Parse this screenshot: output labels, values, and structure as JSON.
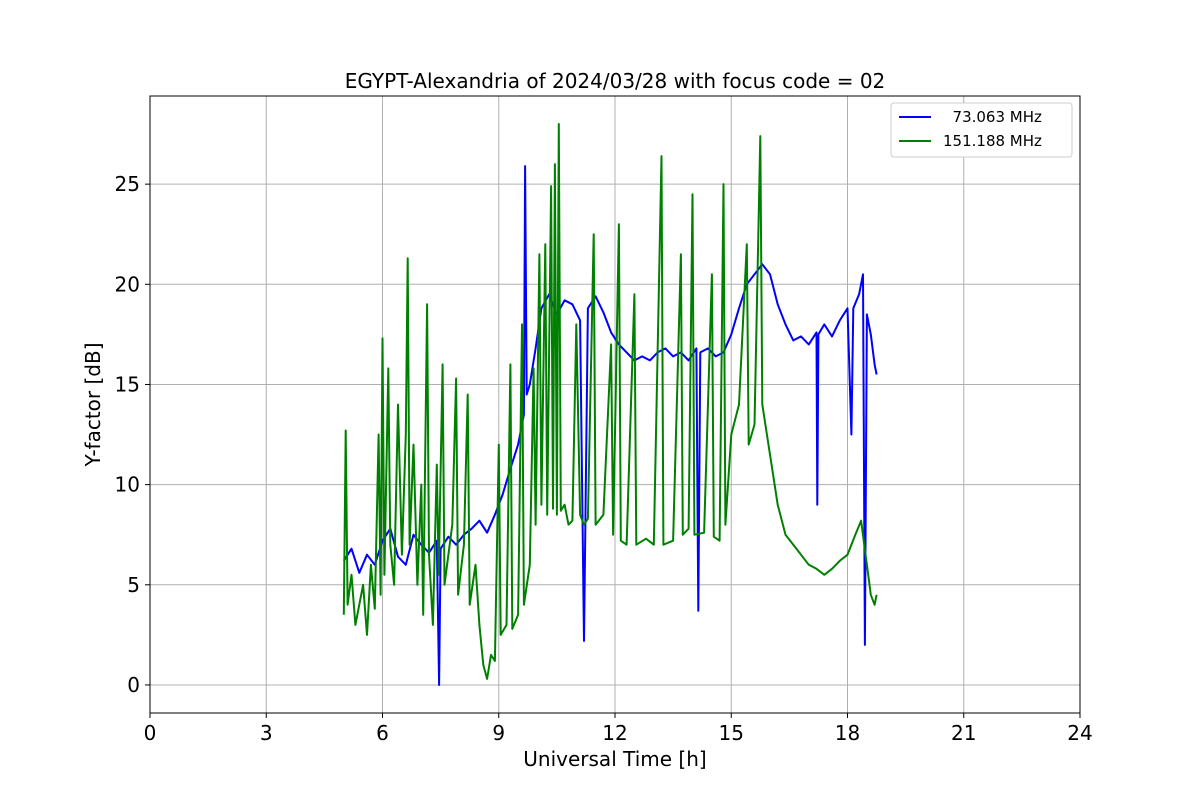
{
  "chart_data": {
    "type": "line",
    "title": "EGYPT-Alexandria of 2024/03/28 with focus code = 02",
    "xlabel": "Universal Time [h]",
    "ylabel": "Y-factor [dB]",
    "xlim": [
      0,
      24
    ],
    "ylim": [
      -1.4,
      29.4
    ],
    "xticks": [
      0,
      3,
      6,
      9,
      12,
      15,
      18,
      21,
      24
    ],
    "yticks": [
      0,
      5,
      10,
      15,
      20,
      25
    ],
    "grid": true,
    "legend_position": "top-right",
    "series": [
      {
        "name": "  73.063 MHz",
        "color": "#0000ff",
        "points": [
          [
            5.0,
            6.2
          ],
          [
            5.2,
            6.8
          ],
          [
            5.4,
            5.6
          ],
          [
            5.6,
            6.5
          ],
          [
            5.8,
            6.0
          ],
          [
            6.0,
            7.2
          ],
          [
            6.2,
            7.8
          ],
          [
            6.4,
            6.4
          ],
          [
            6.6,
            6.0
          ],
          [
            6.8,
            7.5
          ],
          [
            7.0,
            7.0
          ],
          [
            7.2,
            6.6
          ],
          [
            7.4,
            7.2
          ],
          [
            7.46,
            0.0
          ],
          [
            7.5,
            6.8
          ],
          [
            7.7,
            7.4
          ],
          [
            7.9,
            7.0
          ],
          [
            8.1,
            7.5
          ],
          [
            8.3,
            7.8
          ],
          [
            8.5,
            8.2
          ],
          [
            8.7,
            7.6
          ],
          [
            8.9,
            8.5
          ],
          [
            9.1,
            9.5
          ],
          [
            9.3,
            10.8
          ],
          [
            9.5,
            12.0
          ],
          [
            9.65,
            13.5
          ],
          [
            9.68,
            25.9
          ],
          [
            9.72,
            14.5
          ],
          [
            9.8,
            15.0
          ],
          [
            9.95,
            16.8
          ],
          [
            10.1,
            18.8
          ],
          [
            10.3,
            19.5
          ],
          [
            10.5,
            18.5
          ],
          [
            10.7,
            19.2
          ],
          [
            10.9,
            19.0
          ],
          [
            11.1,
            18.2
          ],
          [
            11.2,
            2.2
          ],
          [
            11.3,
            18.8
          ],
          [
            11.5,
            19.4
          ],
          [
            11.7,
            18.6
          ],
          [
            11.9,
            17.6
          ],
          [
            12.1,
            17.0
          ],
          [
            12.3,
            16.6
          ],
          [
            12.5,
            16.2
          ],
          [
            12.7,
            16.4
          ],
          [
            12.9,
            16.2
          ],
          [
            13.1,
            16.6
          ],
          [
            13.3,
            16.8
          ],
          [
            13.5,
            16.4
          ],
          [
            13.7,
            16.6
          ],
          [
            13.9,
            16.2
          ],
          [
            14.1,
            16.8
          ],
          [
            14.15,
            3.7
          ],
          [
            14.2,
            16.6
          ],
          [
            14.4,
            16.8
          ],
          [
            14.6,
            16.4
          ],
          [
            14.8,
            16.6
          ],
          [
            15.0,
            17.5
          ],
          [
            15.2,
            18.8
          ],
          [
            15.4,
            20.0
          ],
          [
            15.6,
            20.5
          ],
          [
            15.8,
            21.0
          ],
          [
            16.0,
            20.5
          ],
          [
            16.2,
            19.0
          ],
          [
            16.4,
            18.0
          ],
          [
            16.6,
            17.2
          ],
          [
            16.8,
            17.4
          ],
          [
            17.0,
            17.0
          ],
          [
            17.2,
            17.6
          ],
          [
            17.22,
            9.0
          ],
          [
            17.25,
            17.5
          ],
          [
            17.4,
            18.0
          ],
          [
            17.6,
            17.4
          ],
          [
            17.8,
            18.2
          ],
          [
            18.0,
            18.8
          ],
          [
            18.1,
            12.5
          ],
          [
            18.15,
            18.8
          ],
          [
            18.3,
            19.5
          ],
          [
            18.4,
            20.5
          ],
          [
            18.45,
            2.0
          ],
          [
            18.5,
            18.5
          ],
          [
            18.6,
            17.5
          ],
          [
            18.7,
            16.0
          ],
          [
            18.75,
            15.5
          ]
        ]
      },
      {
        "name": "151.188 MHz",
        "color": "#008000",
        "points": [
          [
            5.0,
            3.5
          ],
          [
            5.05,
            12.7
          ],
          [
            5.1,
            4.0
          ],
          [
            5.2,
            5.5
          ],
          [
            5.3,
            3.0
          ],
          [
            5.5,
            5.0
          ],
          [
            5.6,
            2.5
          ],
          [
            5.7,
            6.0
          ],
          [
            5.8,
            3.8
          ],
          [
            5.9,
            12.5
          ],
          [
            5.95,
            4.5
          ],
          [
            6.0,
            17.3
          ],
          [
            6.05,
            5.5
          ],
          [
            6.15,
            15.8
          ],
          [
            6.2,
            7.0
          ],
          [
            6.3,
            5.0
          ],
          [
            6.4,
            14.0
          ],
          [
            6.5,
            6.5
          ],
          [
            6.6,
            12.5
          ],
          [
            6.65,
            21.3
          ],
          [
            6.7,
            7.0
          ],
          [
            6.8,
            12.0
          ],
          [
            6.9,
            5.0
          ],
          [
            7.0,
            10.0
          ],
          [
            7.05,
            3.5
          ],
          [
            7.15,
            19.0
          ],
          [
            7.2,
            6.5
          ],
          [
            7.3,
            3.0
          ],
          [
            7.4,
            11.0
          ],
          [
            7.45,
            5.5
          ],
          [
            7.55,
            16.0
          ],
          [
            7.6,
            5.0
          ],
          [
            7.8,
            8.0
          ],
          [
            7.9,
            15.3
          ],
          [
            7.95,
            4.5
          ],
          [
            8.1,
            7.0
          ],
          [
            8.2,
            14.5
          ],
          [
            8.25,
            4.0
          ],
          [
            8.4,
            6.0
          ],
          [
            8.5,
            3.0
          ],
          [
            8.6,
            1.0
          ],
          [
            8.7,
            0.3
          ],
          [
            8.8,
            1.5
          ],
          [
            8.9,
            1.2
          ],
          [
            9.0,
            12.0
          ],
          [
            9.05,
            2.5
          ],
          [
            9.2,
            3.0
          ],
          [
            9.3,
            16.0
          ],
          [
            9.35,
            2.8
          ],
          [
            9.5,
            3.5
          ],
          [
            9.6,
            18.0
          ],
          [
            9.65,
            4.0
          ],
          [
            9.8,
            6.0
          ],
          [
            9.9,
            15.8
          ],
          [
            9.95,
            8.0
          ],
          [
            10.05,
            21.5
          ],
          [
            10.1,
            9.0
          ],
          [
            10.2,
            22.0
          ],
          [
            10.25,
            8.5
          ],
          [
            10.35,
            24.9
          ],
          [
            10.4,
            8.8
          ],
          [
            10.45,
            26.0
          ],
          [
            10.5,
            8.5
          ],
          [
            10.55,
            28.0
          ],
          [
            10.6,
            8.7
          ],
          [
            10.7,
            9.0
          ],
          [
            10.8,
            8.0
          ],
          [
            10.9,
            8.2
          ],
          [
            11.0,
            18.0
          ],
          [
            11.1,
            8.5
          ],
          [
            11.2,
            8.0
          ],
          [
            11.3,
            8.3
          ],
          [
            11.45,
            22.5
          ],
          [
            11.5,
            8.0
          ],
          [
            11.7,
            8.5
          ],
          [
            11.9,
            17.0
          ],
          [
            11.95,
            7.5
          ],
          [
            12.1,
            23.0
          ],
          [
            12.15,
            7.2
          ],
          [
            12.3,
            7.0
          ],
          [
            12.5,
            19.5
          ],
          [
            12.55,
            7.0
          ],
          [
            12.8,
            7.3
          ],
          [
            13.0,
            7.0
          ],
          [
            13.2,
            26.4
          ],
          [
            13.25,
            7.0
          ],
          [
            13.5,
            7.2
          ],
          [
            13.7,
            21.5
          ],
          [
            13.75,
            7.5
          ],
          [
            13.9,
            7.8
          ],
          [
            14.0,
            24.5
          ],
          [
            14.05,
            7.5
          ],
          [
            14.3,
            7.6
          ],
          [
            14.5,
            20.5
          ],
          [
            14.55,
            7.4
          ],
          [
            14.7,
            7.2
          ],
          [
            14.8,
            25.0
          ],
          [
            14.85,
            8.0
          ],
          [
            15.0,
            12.5
          ],
          [
            15.2,
            14.0
          ],
          [
            15.4,
            22.0
          ],
          [
            15.45,
            12.0
          ],
          [
            15.6,
            13.0
          ],
          [
            15.75,
            27.4
          ],
          [
            15.8,
            14.0
          ],
          [
            16.0,
            11.5
          ],
          [
            16.2,
            9.0
          ],
          [
            16.4,
            7.5
          ],
          [
            16.6,
            7.0
          ],
          [
            16.8,
            6.5
          ],
          [
            17.0,
            6.0
          ],
          [
            17.2,
            5.8
          ],
          [
            17.4,
            5.5
          ],
          [
            17.6,
            5.8
          ],
          [
            17.8,
            6.2
          ],
          [
            18.0,
            6.5
          ],
          [
            18.2,
            7.5
          ],
          [
            18.35,
            8.2
          ],
          [
            18.5,
            6.0
          ],
          [
            18.6,
            4.5
          ],
          [
            18.7,
            4.0
          ],
          [
            18.75,
            4.5
          ]
        ]
      }
    ]
  }
}
